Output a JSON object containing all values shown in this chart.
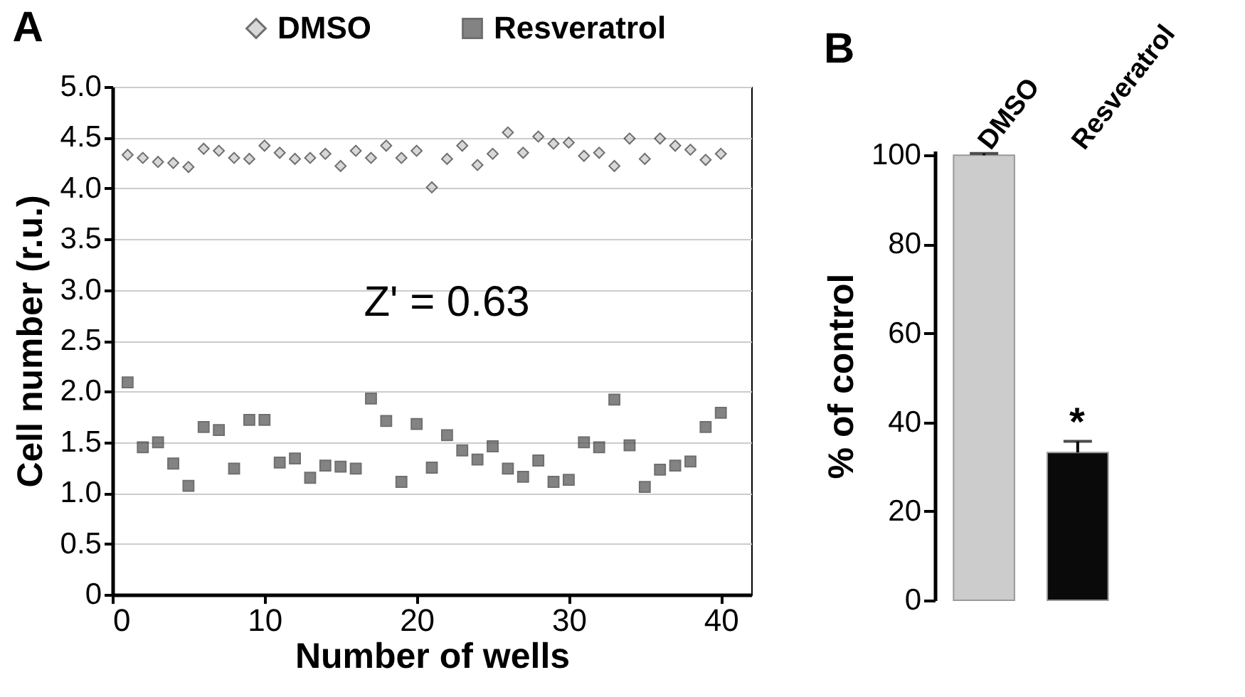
{
  "chart_data": [
    {
      "type": "scatter",
      "title": "A",
      "xlabel": "Number of wells",
      "ylabel": "Cell number  (r.u.)",
      "annotations": [
        "Z' = 0.63"
      ],
      "legend": "top",
      "grid": "y",
      "xlim": [
        0,
        42
      ],
      "xticks": [
        0,
        10,
        20,
        30,
        40
      ],
      "ylim": [
        0,
        5
      ],
      "yticks": [
        0,
        {
          "value": 0.5,
          "label": "0.5"
        },
        {
          "value": 1,
          "label": "1.0"
        },
        {
          "value": 1.5,
          "label": "1.5"
        },
        {
          "value": 2,
          "label": "2.0"
        },
        {
          "value": 2.5,
          "label": "2.5"
        },
        {
          "value": 3,
          "label": "3.0"
        },
        {
          "value": 3.5,
          "label": "3.5"
        },
        {
          "value": 4,
          "label": "4.0"
        },
        {
          "value": 4.5,
          "label": "4.5"
        },
        {
          "value": 5,
          "label": "5.0"
        }
      ],
      "x": [
        1,
        2,
        3,
        4,
        5,
        6,
        7,
        8,
        9,
        10,
        11,
        12,
        13,
        14,
        15,
        16,
        17,
        18,
        19,
        20,
        21,
        22,
        23,
        24,
        25,
        26,
        27,
        28,
        29,
        30,
        31,
        32,
        33,
        34,
        35,
        36,
        37,
        38,
        39,
        40
      ],
      "series": [
        {
          "name": "DMSO",
          "color": "#c8c8c8",
          "marker": "diamond",
          "values": [
            4.33,
            4.3,
            4.26,
            4.25,
            4.21,
            4.39,
            4.37,
            4.3,
            4.29,
            4.42,
            4.35,
            4.29,
            4.3,
            4.34,
            4.22,
            4.37,
            4.3,
            4.42,
            4.3,
            4.37,
            4.01,
            4.29,
            4.42,
            4.23,
            4.34,
            4.55,
            4.35,
            4.51,
            4.44,
            4.45,
            4.32,
            4.35,
            4.22,
            4.49,
            4.29,
            4.49,
            4.42,
            4.38,
            4.28,
            4.34
          ]
        },
        {
          "name": "Resveratrol",
          "color": "#505050",
          "marker": "square",
          "values": [
            2.09,
            1.45,
            1.5,
            1.29,
            1.07,
            1.65,
            1.62,
            1.24,
            1.72,
            1.72,
            1.3,
            1.34,
            1.15,
            1.27,
            1.26,
            1.24,
            1.93,
            1.71,
            1.11,
            1.68,
            1.25,
            1.57,
            1.42,
            1.33,
            1.46,
            1.24,
            1.16,
            1.32,
            1.11,
            1.13,
            1.5,
            1.45,
            1.92,
            1.47,
            1.06,
            1.23,
            1.27,
            1.31,
            1.65,
            1.79
          ]
        }
      ]
    },
    {
      "type": "bar",
      "title": "B",
      "ylabel": "% of control",
      "categories": [
        "DMSO",
        "Resveratrol"
      ],
      "values": [
        100,
        33.2
      ],
      "errors": [
        0.4,
        2.5
      ],
      "colors": [
        "#cccccc",
        "#0a0a0a"
      ],
      "annotations": [
        "*"
      ],
      "ylim": [
        0,
        101
      ],
      "yticks": [
        0,
        20,
        40,
        60,
        80,
        100
      ],
      "grid": false
    }
  ]
}
